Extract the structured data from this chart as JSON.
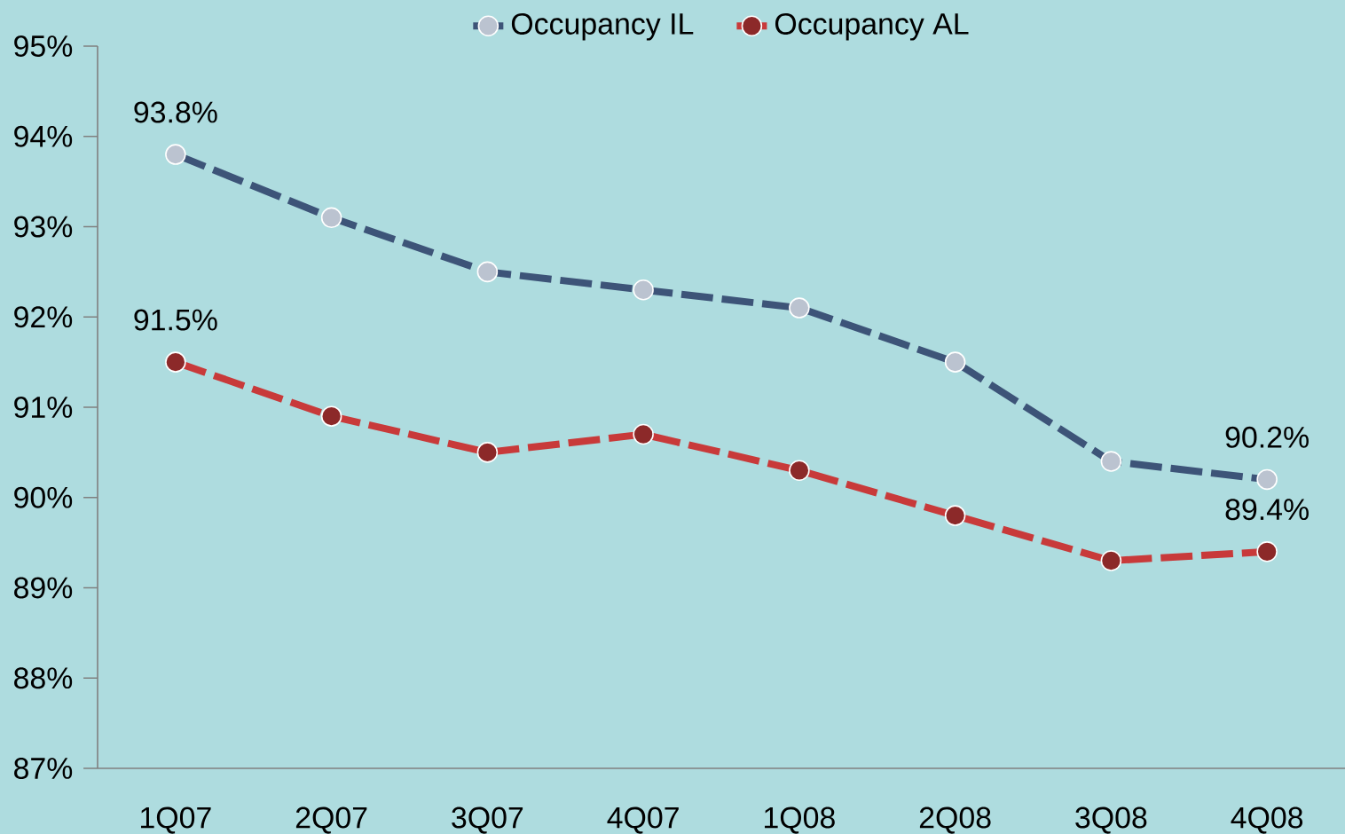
{
  "chart_data": {
    "type": "line",
    "categories": [
      "1Q07",
      "2Q07",
      "3Q07",
      "4Q07",
      "1Q08",
      "2Q08",
      "3Q08",
      "4Q08"
    ],
    "series": [
      {
        "name": "Occupancy IL",
        "color": "#3d5478",
        "values": [
          93.8,
          93.1,
          92.5,
          92.3,
          92.1,
          91.5,
          90.4,
          90.2
        ],
        "value_labels": [
          "93.8%",
          null,
          null,
          null,
          null,
          null,
          null,
          "90.2%"
        ]
      },
      {
        "name": "Occupancy AL",
        "color": "#c83a3a",
        "values": [
          91.5,
          90.9,
          90.5,
          90.7,
          90.3,
          89.8,
          89.3,
          89.4
        ],
        "value_labels": [
          "91.5%",
          null,
          null,
          null,
          null,
          null,
          null,
          "89.4%"
        ]
      }
    ],
    "ylim": [
      87,
      95
    ],
    "yticks": [
      {
        "value": 87,
        "label": "87%"
      },
      {
        "value": 88,
        "label": "88%"
      },
      {
        "value": 89,
        "label": "89%"
      },
      {
        "value": 90,
        "label": "90%"
      },
      {
        "value": 91,
        "label": "91%"
      },
      {
        "value": 92,
        "label": "92%"
      },
      {
        "value": 93,
        "label": "93%"
      },
      {
        "value": 94,
        "label": "94%"
      },
      {
        "value": 95,
        "label": "95%"
      }
    ],
    "grid": false,
    "legend": "top",
    "marker": "circle",
    "line_style": "dashed"
  }
}
